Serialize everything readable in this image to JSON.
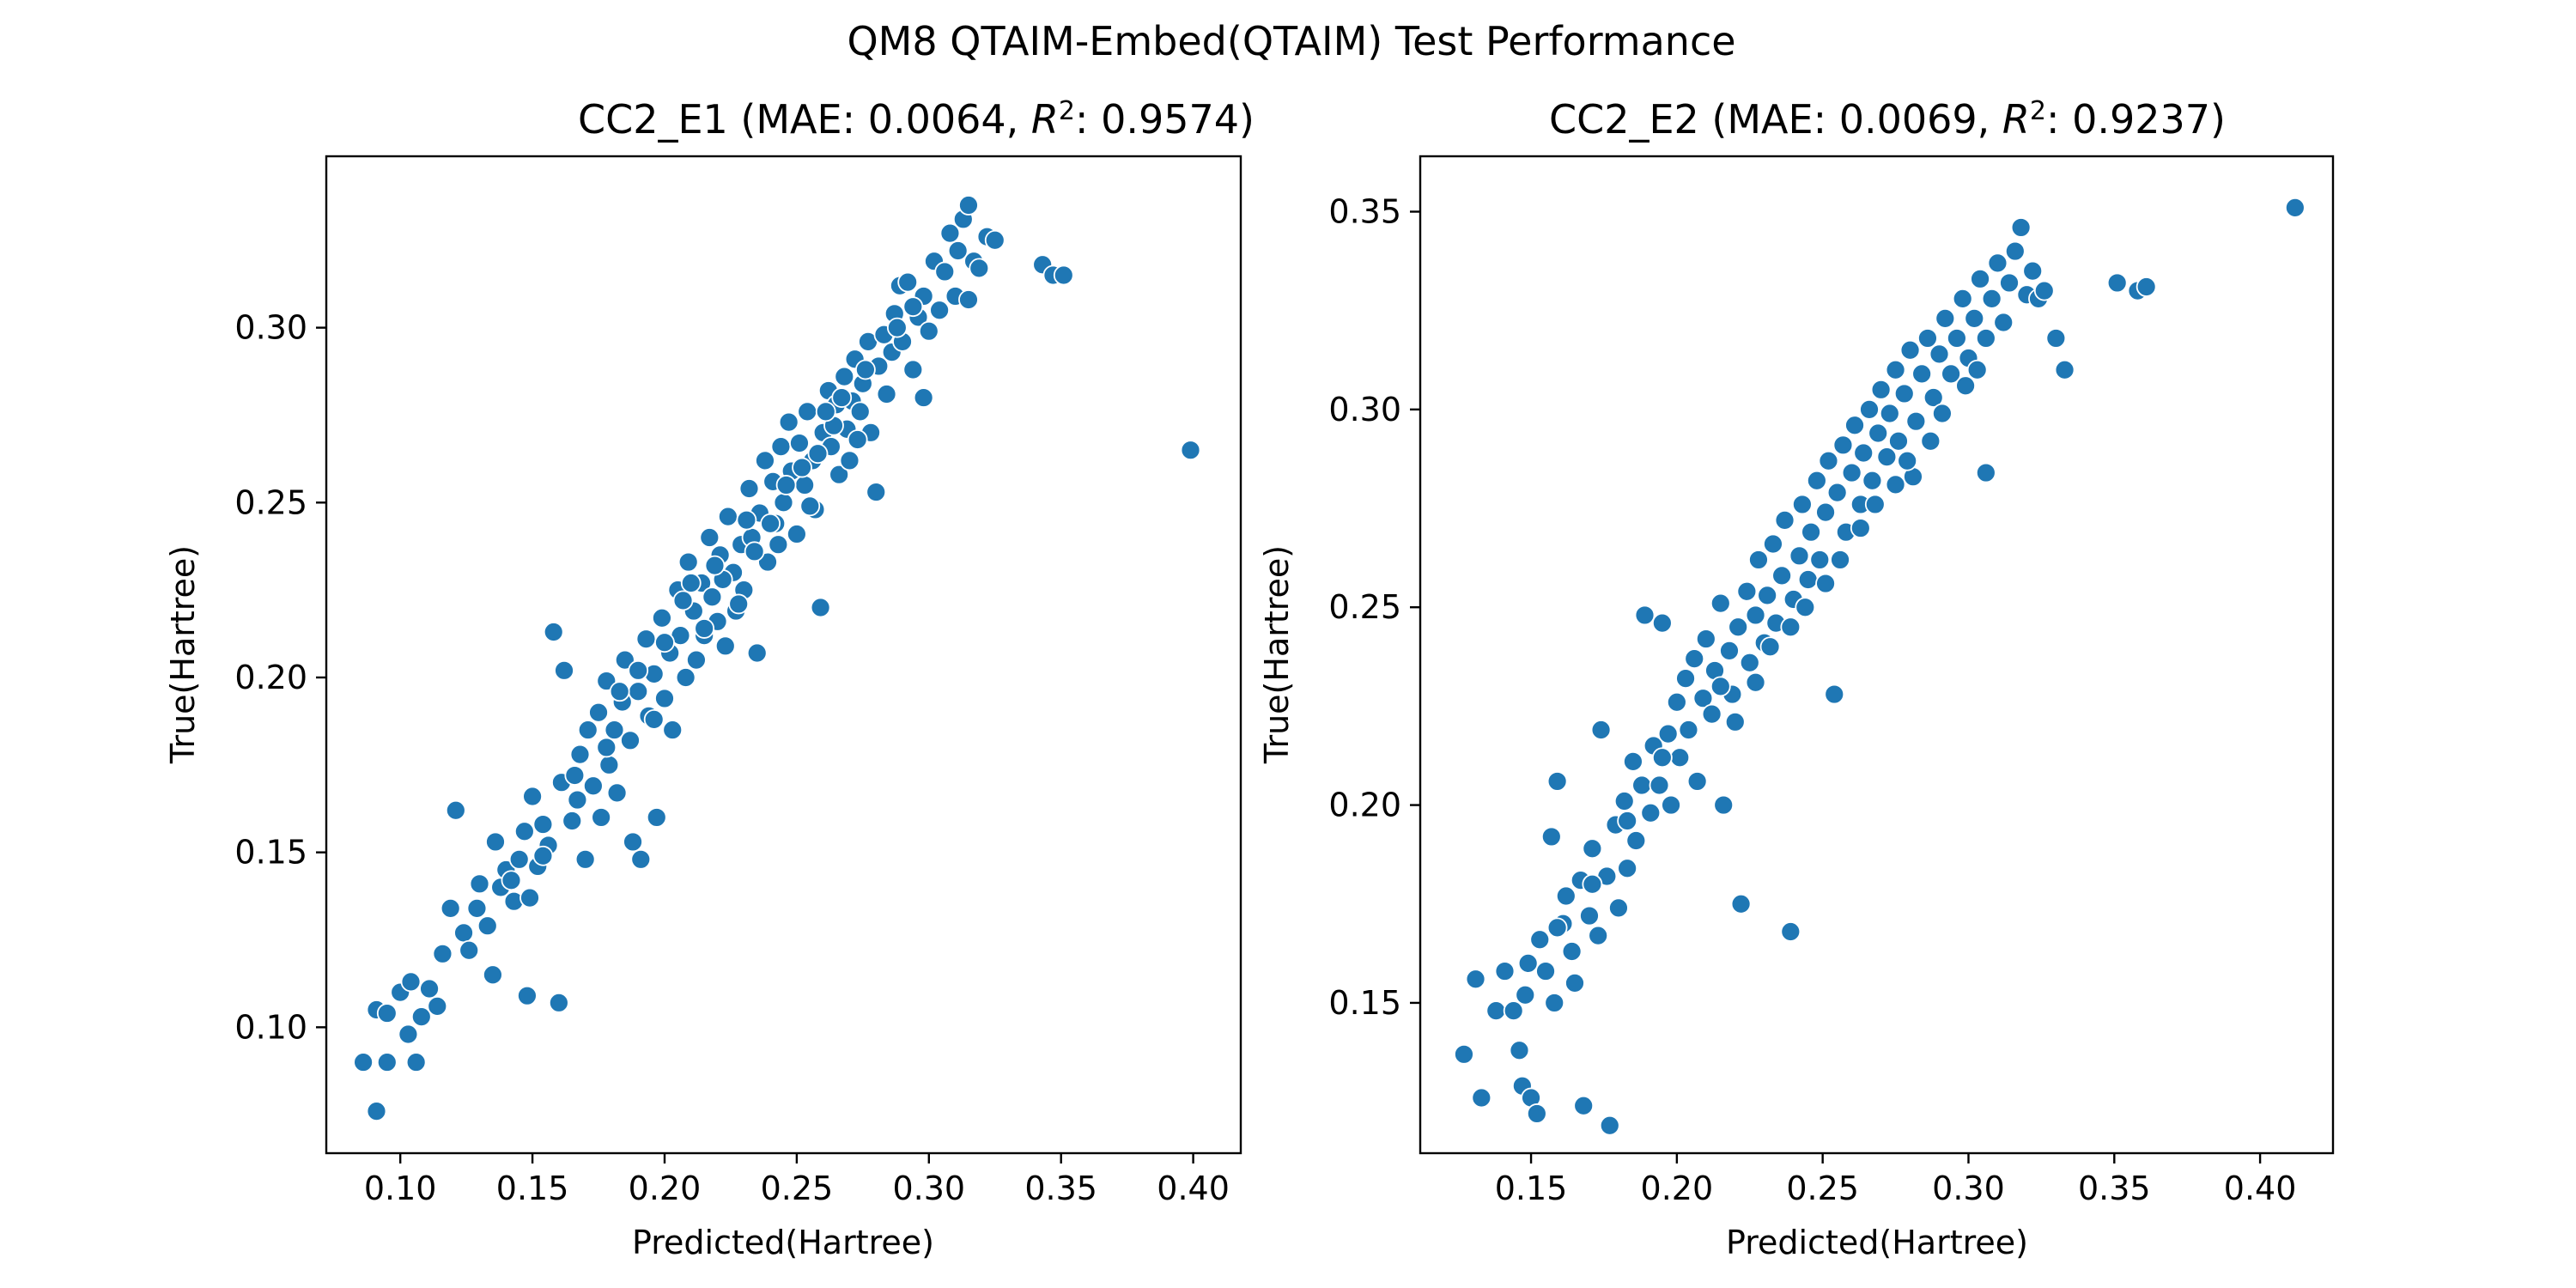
{
  "figure": {
    "title": "QM8 QTAIM-Embed(QTAIM) Test Performance",
    "point_color": "#1f77b4"
  },
  "chart_data": [
    {
      "type": "scatter",
      "title_prefix": "CC2_E1 (MAE: 0.0064, ",
      "title_r2_symbol": "R",
      "title_r2_exp": "2",
      "title_suffix": ": 0.9574)",
      "xlabel": "Predicted(Hartree)",
      "ylabel": "True(Hartree)",
      "xlim": [
        0.072,
        0.418
      ],
      "ylim": [
        0.064,
        0.349
      ],
      "xticks": [
        "0.10",
        "0.15",
        "0.20",
        "0.25",
        "0.30",
        "0.35",
        "0.40"
      ],
      "yticks": [
        "0.10",
        "0.15",
        "0.20",
        "0.25",
        "0.30"
      ],
      "grid": false,
      "points": [
        [
          0.086,
          0.09
        ],
        [
          0.091,
          0.076
        ],
        [
          0.095,
          0.09
        ],
        [
          0.091,
          0.105
        ],
        [
          0.095,
          0.104
        ],
        [
          0.1,
          0.11
        ],
        [
          0.103,
          0.098
        ],
        [
          0.106,
          0.09
        ],
        [
          0.104,
          0.113
        ],
        [
          0.108,
          0.103
        ],
        [
          0.111,
          0.111
        ],
        [
          0.114,
          0.106
        ],
        [
          0.116,
          0.121
        ],
        [
          0.119,
          0.134
        ],
        [
          0.121,
          0.162
        ],
        [
          0.124,
          0.127
        ],
        [
          0.126,
          0.122
        ],
        [
          0.129,
          0.134
        ],
        [
          0.13,
          0.141
        ],
        [
          0.133,
          0.129
        ],
        [
          0.135,
          0.115
        ],
        [
          0.138,
          0.14
        ],
        [
          0.136,
          0.153
        ],
        [
          0.14,
          0.145
        ],
        [
          0.143,
          0.136
        ],
        [
          0.145,
          0.148
        ],
        [
          0.147,
          0.156
        ],
        [
          0.149,
          0.137
        ],
        [
          0.15,
          0.166
        ],
        [
          0.148,
          0.109
        ],
        [
          0.152,
          0.146
        ],
        [
          0.154,
          0.158
        ],
        [
          0.156,
          0.152
        ],
        [
          0.158,
          0.213
        ],
        [
          0.16,
          0.107
        ],
        [
          0.161,
          0.17
        ],
        [
          0.162,
          0.202
        ],
        [
          0.165,
          0.159
        ],
        [
          0.167,
          0.165
        ],
        [
          0.168,
          0.178
        ],
        [
          0.17,
          0.148
        ],
        [
          0.171,
          0.185
        ],
        [
          0.173,
          0.169
        ],
        [
          0.175,
          0.19
        ],
        [
          0.176,
          0.16
        ],
        [
          0.178,
          0.199
        ],
        [
          0.179,
          0.175
        ],
        [
          0.181,
          0.185
        ],
        [
          0.182,
          0.167
        ],
        [
          0.184,
          0.193
        ],
        [
          0.185,
          0.205
        ],
        [
          0.187,
          0.182
        ],
        [
          0.188,
          0.153
        ],
        [
          0.19,
          0.196
        ],
        [
          0.191,
          0.148
        ],
        [
          0.193,
          0.211
        ],
        [
          0.194,
          0.189
        ],
        [
          0.196,
          0.201
        ],
        [
          0.197,
          0.16
        ],
        [
          0.199,
          0.217
        ],
        [
          0.2,
          0.194
        ],
        [
          0.202,
          0.207
        ],
        [
          0.203,
          0.185
        ],
        [
          0.205,
          0.225
        ],
        [
          0.206,
          0.212
        ],
        [
          0.208,
          0.2
        ],
        [
          0.209,
          0.233
        ],
        [
          0.211,
          0.219
        ],
        [
          0.212,
          0.205
        ],
        [
          0.214,
          0.227
        ],
        [
          0.215,
          0.212
        ],
        [
          0.217,
          0.24
        ],
        [
          0.218,
          0.223
        ],
        [
          0.22,
          0.216
        ],
        [
          0.221,
          0.235
        ],
        [
          0.223,
          0.209
        ],
        [
          0.224,
          0.246
        ],
        [
          0.226,
          0.23
        ],
        [
          0.227,
          0.219
        ],
        [
          0.229,
          0.238
        ],
        [
          0.23,
          0.225
        ],
        [
          0.232,
          0.254
        ],
        [
          0.233,
          0.24
        ],
        [
          0.235,
          0.207
        ],
        [
          0.236,
          0.247
        ],
        [
          0.238,
          0.262
        ],
        [
          0.239,
          0.233
        ],
        [
          0.241,
          0.256
        ],
        [
          0.242,
          0.244
        ],
        [
          0.244,
          0.266
        ],
        [
          0.245,
          0.25
        ],
        [
          0.247,
          0.273
        ],
        [
          0.248,
          0.259
        ],
        [
          0.25,
          0.241
        ],
        [
          0.251,
          0.267
        ],
        [
          0.253,
          0.255
        ],
        [
          0.254,
          0.276
        ],
        [
          0.256,
          0.262
        ],
        [
          0.257,
          0.248
        ],
        [
          0.259,
          0.22
        ],
        [
          0.26,
          0.27
        ],
        [
          0.262,
          0.282
        ],
        [
          0.263,
          0.266
        ],
        [
          0.265,
          0.278
        ],
        [
          0.266,
          0.258
        ],
        [
          0.268,
          0.286
        ],
        [
          0.269,
          0.271
        ],
        [
          0.271,
          0.279
        ],
        [
          0.272,
          0.291
        ],
        [
          0.274,
          0.276
        ],
        [
          0.275,
          0.284
        ],
        [
          0.277,
          0.296
        ],
        [
          0.278,
          0.27
        ],
        [
          0.28,
          0.253
        ],
        [
          0.281,
          0.289
        ],
        [
          0.283,
          0.298
        ],
        [
          0.284,
          0.281
        ],
        [
          0.286,
          0.293
        ],
        [
          0.287,
          0.304
        ],
        [
          0.289,
          0.312
        ],
        [
          0.29,
          0.296
        ],
        [
          0.292,
          0.313
        ],
        [
          0.294,
          0.288
        ],
        [
          0.296,
          0.303
        ],
        [
          0.298,
          0.309
        ],
        [
          0.3,
          0.299
        ],
        [
          0.302,
          0.319
        ],
        [
          0.304,
          0.305
        ],
        [
          0.306,
          0.316
        ],
        [
          0.308,
          0.327
        ],
        [
          0.31,
          0.309
        ],
        [
          0.311,
          0.322
        ],
        [
          0.313,
          0.331
        ],
        [
          0.315,
          0.335
        ],
        [
          0.317,
          0.319
        ],
        [
          0.319,
          0.317
        ],
        [
          0.322,
          0.326
        ],
        [
          0.325,
          0.325
        ],
        [
          0.343,
          0.318
        ],
        [
          0.347,
          0.315
        ],
        [
          0.351,
          0.315
        ],
        [
          0.315,
          0.308
        ],
        [
          0.298,
          0.28
        ],
        [
          0.399,
          0.265
        ],
        [
          0.21,
          0.227
        ],
        [
          0.222,
          0.228
        ],
        [
          0.234,
          0.236
        ],
        [
          0.246,
          0.255
        ],
        [
          0.258,
          0.264
        ],
        [
          0.19,
          0.202
        ],
        [
          0.178,
          0.18
        ],
        [
          0.166,
          0.172
        ],
        [
          0.154,
          0.149
        ],
        [
          0.142,
          0.142
        ],
        [
          0.2,
          0.21
        ],
        [
          0.215,
          0.214
        ],
        [
          0.228,
          0.221
        ],
        [
          0.24,
          0.244
        ],
        [
          0.252,
          0.26
        ],
        [
          0.264,
          0.272
        ],
        [
          0.27,
          0.262
        ],
        [
          0.276,
          0.288
        ],
        [
          0.288,
          0.3
        ],
        [
          0.294,
          0.306
        ],
        [
          0.183,
          0.196
        ],
        [
          0.196,
          0.188
        ],
        [
          0.207,
          0.222
        ],
        [
          0.219,
          0.232
        ],
        [
          0.231,
          0.245
        ],
        [
          0.243,
          0.238
        ],
        [
          0.255,
          0.249
        ],
        [
          0.261,
          0.276
        ],
        [
          0.267,
          0.28
        ],
        [
          0.273,
          0.268
        ]
      ]
    },
    {
      "type": "scatter",
      "title_prefix": "CC2_E2 (MAE: 0.0069, ",
      "title_r2_symbol": "R",
      "title_r2_exp": "2",
      "title_suffix": ": 0.9237)",
      "xlabel": "Predicted(Hartree)",
      "ylabel": "True(Hartree)",
      "xlim": [
        0.112,
        0.425
      ],
      "ylim": [
        0.112,
        0.364
      ],
      "xticks": [
        "0.15",
        "0.20",
        "0.25",
        "0.30",
        "0.35",
        "0.40"
      ],
      "yticks": [
        "0.15",
        "0.20",
        "0.25",
        "0.30",
        "0.35"
      ],
      "grid": false,
      "points": [
        [
          0.127,
          0.137
        ],
        [
          0.131,
          0.156
        ],
        [
          0.133,
          0.126
        ],
        [
          0.138,
          0.148
        ],
        [
          0.141,
          0.158
        ],
        [
          0.144,
          0.148
        ],
        [
          0.146,
          0.138
        ],
        [
          0.147,
          0.129
        ],
        [
          0.149,
          0.16
        ],
        [
          0.15,
          0.126
        ],
        [
          0.152,
          0.122
        ],
        [
          0.148,
          0.152
        ],
        [
          0.153,
          0.166
        ],
        [
          0.155,
          0.158
        ],
        [
          0.157,
          0.192
        ],
        [
          0.158,
          0.15
        ],
        [
          0.159,
          0.206
        ],
        [
          0.161,
          0.17
        ],
        [
          0.162,
          0.177
        ],
        [
          0.164,
          0.163
        ],
        [
          0.165,
          0.155
        ],
        [
          0.167,
          0.181
        ],
        [
          0.168,
          0.124
        ],
        [
          0.17,
          0.172
        ],
        [
          0.171,
          0.189
        ],
        [
          0.173,
          0.167
        ],
        [
          0.174,
          0.219
        ],
        [
          0.176,
          0.182
        ],
        [
          0.177,
          0.119
        ],
        [
          0.179,
          0.195
        ],
        [
          0.18,
          0.174
        ],
        [
          0.182,
          0.201
        ],
        [
          0.183,
          0.184
        ],
        [
          0.185,
          0.211
        ],
        [
          0.186,
          0.191
        ],
        [
          0.188,
          0.205
        ],
        [
          0.189,
          0.248
        ],
        [
          0.191,
          0.198
        ],
        [
          0.192,
          0.215
        ],
        [
          0.194,
          0.205
        ],
        [
          0.195,
          0.246
        ],
        [
          0.197,
          0.218
        ],
        [
          0.198,
          0.2
        ],
        [
          0.2,
          0.226
        ],
        [
          0.201,
          0.212
        ],
        [
          0.203,
          0.232
        ],
        [
          0.204,
          0.219
        ],
        [
          0.206,
          0.237
        ],
        [
          0.207,
          0.206
        ],
        [
          0.209,
          0.227
        ],
        [
          0.21,
          0.242
        ],
        [
          0.212,
          0.223
        ],
        [
          0.213,
          0.234
        ],
        [
          0.215,
          0.251
        ],
        [
          0.216,
          0.2
        ],
        [
          0.218,
          0.239
        ],
        [
          0.219,
          0.228
        ],
        [
          0.221,
          0.245
        ],
        [
          0.222,
          0.175
        ],
        [
          0.224,
          0.254
        ],
        [
          0.225,
          0.236
        ],
        [
          0.227,
          0.248
        ],
        [
          0.228,
          0.262
        ],
        [
          0.23,
          0.241
        ],
        [
          0.231,
          0.253
        ],
        [
          0.233,
          0.266
        ],
        [
          0.234,
          0.246
        ],
        [
          0.236,
          0.258
        ],
        [
          0.237,
          0.272
        ],
        [
          0.239,
          0.168
        ],
        [
          0.24,
          0.252
        ],
        [
          0.242,
          0.263
        ],
        [
          0.243,
          0.276
        ],
        [
          0.245,
          0.257
        ],
        [
          0.246,
          0.269
        ],
        [
          0.248,
          0.282
        ],
        [
          0.249,
          0.262
        ],
        [
          0.251,
          0.274
        ],
        [
          0.252,
          0.287
        ],
        [
          0.254,
          0.228
        ],
        [
          0.255,
          0.279
        ],
        [
          0.257,
          0.291
        ],
        [
          0.258,
          0.269
        ],
        [
          0.26,
          0.284
        ],
        [
          0.261,
          0.296
        ],
        [
          0.263,
          0.276
        ],
        [
          0.264,
          0.289
        ],
        [
          0.266,
          0.3
        ],
        [
          0.267,
          0.282
        ],
        [
          0.269,
          0.294
        ],
        [
          0.27,
          0.305
        ],
        [
          0.272,
          0.288
        ],
        [
          0.273,
          0.299
        ],
        [
          0.275,
          0.31
        ],
        [
          0.276,
          0.292
        ],
        [
          0.278,
          0.304
        ],
        [
          0.28,
          0.315
        ],
        [
          0.282,
          0.297
        ],
        [
          0.284,
          0.309
        ],
        [
          0.286,
          0.318
        ],
        [
          0.288,
          0.303
        ],
        [
          0.29,
          0.314
        ],
        [
          0.292,
          0.323
        ],
        [
          0.294,
          0.309
        ],
        [
          0.296,
          0.318
        ],
        [
          0.298,
          0.328
        ],
        [
          0.3,
          0.313
        ],
        [
          0.302,
          0.323
        ],
        [
          0.304,
          0.333
        ],
        [
          0.306,
          0.318
        ],
        [
          0.308,
          0.328
        ],
        [
          0.31,
          0.337
        ],
        [
          0.312,
          0.322
        ],
        [
          0.314,
          0.332
        ],
        [
          0.316,
          0.34
        ],
        [
          0.318,
          0.346
        ],
        [
          0.32,
          0.329
        ],
        [
          0.322,
          0.335
        ],
        [
          0.324,
          0.328
        ],
        [
          0.326,
          0.33
        ],
        [
          0.33,
          0.318
        ],
        [
          0.333,
          0.31
        ],
        [
          0.351,
          0.332
        ],
        [
          0.358,
          0.33
        ],
        [
          0.361,
          0.331
        ],
        [
          0.412,
          0.351
        ],
        [
          0.306,
          0.284
        ],
        [
          0.281,
          0.283
        ],
        [
          0.215,
          0.23
        ],
        [
          0.227,
          0.231
        ],
        [
          0.239,
          0.245
        ],
        [
          0.251,
          0.256
        ],
        [
          0.263,
          0.27
        ],
        [
          0.275,
          0.281
        ],
        [
          0.287,
          0.292
        ],
        [
          0.299,
          0.306
        ],
        [
          0.195,
          0.212
        ],
        [
          0.183,
          0.196
        ],
        [
          0.171,
          0.18
        ],
        [
          0.159,
          0.169
        ],
        [
          0.22,
          0.221
        ],
        [
          0.232,
          0.24
        ],
        [
          0.244,
          0.25
        ],
        [
          0.256,
          0.262
        ],
        [
          0.268,
          0.276
        ],
        [
          0.279,
          0.287
        ],
        [
          0.291,
          0.299
        ],
        [
          0.303,
          0.31
        ]
      ]
    }
  ]
}
